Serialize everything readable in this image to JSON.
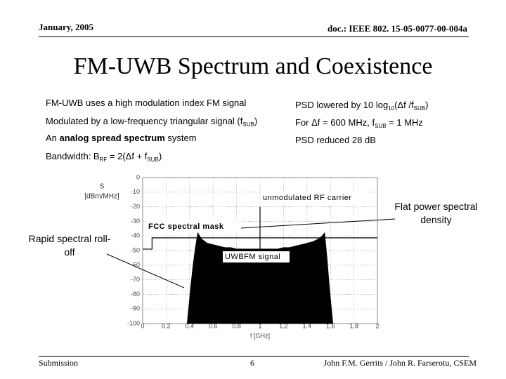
{
  "header": {
    "date": "January, 2005",
    "doc": "doc.: IEEE 802. 15-05-0077-00-004a"
  },
  "title": "FM-UWB Spectrum and Coexistence",
  "left_items": [
    [
      {
        "t": "FM-UWB uses a high modulation index FM signal"
      }
    ],
    [
      {
        "t": "Modulated by a low-frequency triangular signal (f"
      },
      {
        "sub": "SUB"
      },
      {
        "t": ")"
      }
    ],
    [
      {
        "t": "An "
      },
      {
        "b": "analog spread spectrum"
      },
      {
        "t": " system"
      }
    ],
    [
      {
        "t": "Bandwidth: B"
      },
      {
        "sub": "RF"
      },
      {
        "t": " = 2(Δf + f"
      },
      {
        "sub": "SUB"
      },
      {
        "t": ")"
      }
    ]
  ],
  "right_items": [
    [
      {
        "t": "PSD lowered by 10 log"
      },
      {
        "sub": "10"
      },
      {
        "t": "(Δf /f"
      },
      {
        "sub": "SUB"
      },
      {
        "t": ")"
      }
    ],
    [
      {
        "t": "For Δf = 600 MHz, f"
      },
      {
        "sub": "SUB"
      },
      {
        "t": " = 1 MHz"
      }
    ],
    [
      {
        "t": "PSD reduced 28 dB"
      }
    ]
  ],
  "callouts": {
    "right": "Flat power spectral density",
    "left": "Rapid spectral roll-off"
  },
  "chart_data": {
    "type": "area",
    "ylabel": [
      "S",
      "[dBm/MHz]"
    ],
    "xlabel": "f [GHz]",
    "xlim": [
      0,
      2
    ],
    "xticks": [
      0,
      0.2,
      0.4,
      0.6,
      0.8,
      1,
      1.2,
      1.4,
      1.6,
      1.8,
      2
    ],
    "ylim": [
      -100,
      0
    ],
    "yticks": [
      0,
      -10,
      -20,
      -30,
      -40,
      -50,
      -60,
      -70,
      -80,
      -90,
      -100
    ],
    "grid": true,
    "series": [
      {
        "name": "UWBFM signal",
        "type": "area",
        "color": "#000000",
        "x": [
          0.38,
          0.41,
          0.43,
          0.45,
          0.47,
          0.5,
          0.55,
          0.6,
          0.65,
          0.7,
          0.75,
          0.8,
          0.85,
          0.9,
          0.95,
          1.0,
          1.05,
          1.1,
          1.15,
          1.2,
          1.25,
          1.3,
          1.35,
          1.4,
          1.45,
          1.5,
          1.53,
          1.55,
          1.57,
          1.59,
          1.62
        ],
        "values": [
          -100,
          -75,
          -60,
          -48,
          -38,
          -42,
          -45,
          -46,
          -47,
          -48,
          -48,
          -49,
          -49,
          -49,
          -49,
          -49,
          -49,
          -49,
          -49,
          -48,
          -48,
          -47,
          -46,
          -45,
          -44,
          -42,
          -40,
          -38,
          -55,
          -75,
          -100
        ]
      },
      {
        "name": "FCC spectral mask",
        "type": "line",
        "color": "#000000",
        "x": [
          0,
          0.08,
          0.08,
          2
        ],
        "values": [
          -49,
          -49,
          -41.3,
          -41.3
        ]
      },
      {
        "name": "unmodulated RF carrier",
        "type": "line",
        "color": "#000000",
        "x": [
          1.0,
          1.0
        ],
        "values": [
          -100,
          -20
        ]
      }
    ]
  },
  "footer": {
    "left": "Submission",
    "page": "6",
    "right": "John F.M. Gerrits / John R. Farserotu, CSEM"
  }
}
